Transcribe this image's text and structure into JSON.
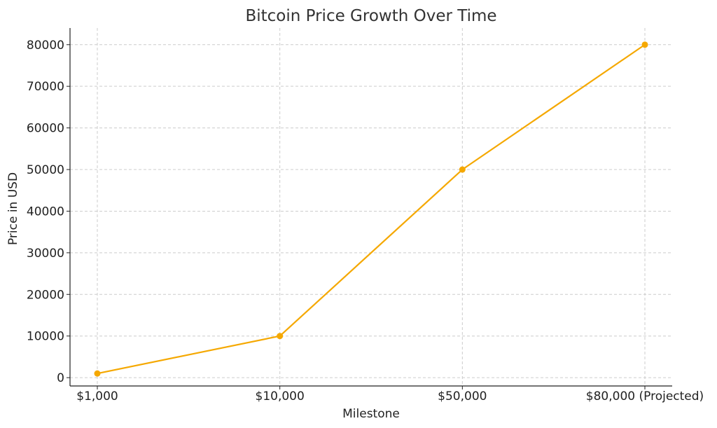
{
  "chart_data": {
    "type": "line",
    "title": "Bitcoin Price Growth Over Time",
    "xlabel": "Milestone",
    "ylabel": "Price in USD",
    "categories": [
      "$1,000",
      "$10,000",
      "$50,000",
      "$80,000 (Projected)"
    ],
    "series": [
      {
        "values": [
          1000,
          10000,
          50000,
          80000
        ]
      }
    ],
    "ylim": [
      -2000,
      84000
    ],
    "yticks": [
      0,
      10000,
      20000,
      30000,
      40000,
      50000,
      60000,
      70000,
      80000
    ],
    "yticks_labels": [
      "0",
      "10000",
      "20000",
      "30000",
      "40000",
      "50000",
      "60000",
      "70000",
      "80000"
    ],
    "grid": true,
    "line_color": "#F5A800"
  }
}
